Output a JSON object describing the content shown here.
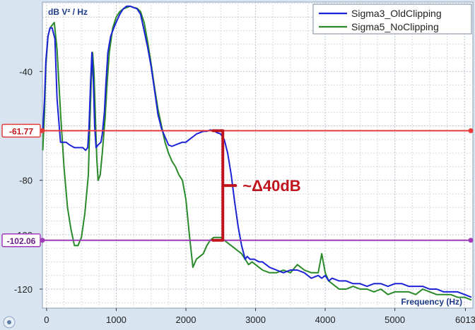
{
  "chart_data": {
    "type": "line",
    "ylabel": "dB V² / Hz",
    "xlabel": "Frequency (Hz)",
    "xlim": [
      -60,
      6120
    ],
    "ylim": [
      -127,
      -14.5
    ],
    "xticks": [
      0,
      1000,
      2000,
      3000,
      4000,
      5000,
      6013
    ],
    "xtick_labels": [
      "0",
      "1000",
      "2000",
      "3000",
      "4000",
      "5000",
      "6013"
    ],
    "yticks": [
      -40,
      -80,
      -120
    ],
    "ytick_labels": [
      "-40",
      "-80",
      "-120"
    ],
    "partial_ytick_label": "-100",
    "grid": true,
    "legend_position": "top-right",
    "series": [
      {
        "name": "Sigma3_OldClipping",
        "color": "#1c22d6",
        "x": [
          -55,
          -30,
          -10,
          20,
          50,
          80,
          120,
          150,
          200,
          240,
          280,
          330,
          400,
          450,
          520,
          560,
          590,
          610,
          630,
          650,
          670,
          690,
          710,
          740,
          780,
          800,
          830,
          850,
          880,
          920,
          980,
          1050,
          1100,
          1150,
          1200,
          1250,
          1300,
          1350,
          1400,
          1450,
          1500,
          1550,
          1600,
          1650,
          1700,
          1750,
          1800,
          1850,
          1900,
          1950,
          2000,
          2050,
          2100,
          2150,
          2200,
          2250,
          2300,
          2350,
          2400,
          2450,
          2500,
          2550,
          2600,
          2650,
          2700,
          2750,
          2800,
          2830,
          2850,
          2880,
          2920,
          2980,
          3050,
          3100,
          3200,
          3300,
          3400,
          3500,
          3600,
          3700,
          3800,
          3900,
          3950,
          4000,
          4050,
          4100,
          4200,
          4300,
          4400,
          4500,
          4600,
          4700,
          4800,
          4900,
          5000,
          5100,
          5200,
          5300,
          5400,
          5500,
          5600,
          5700,
          5800,
          5900,
          6000,
          6100
        ],
        "y": [
          -62,
          -50,
          -36,
          -27,
          -24,
          -24,
          -28,
          -50,
          -66,
          -66,
          -66,
          -67,
          -68,
          -68,
          -68,
          -69,
          -68,
          -60,
          -45,
          -33,
          -42,
          -60,
          -68,
          -67,
          -66,
          -63,
          -55,
          -45,
          -33,
          -27,
          -23,
          -19,
          -17,
          -16,
          -16,
          -16.5,
          -17,
          -19,
          -25,
          -31,
          -38,
          -47,
          -56,
          -61,
          -64,
          -67,
          -67.5,
          -67,
          -66.5,
          -66,
          -66,
          -65,
          -64,
          -63,
          -62.5,
          -62,
          -62,
          -61.5,
          -61.8,
          -62.5,
          -63,
          -65,
          -70,
          -78,
          -88,
          -97,
          -104,
          -107,
          -109,
          -108,
          -109,
          -109,
          -110,
          -110,
          -112,
          -113,
          -114,
          -113,
          -113,
          -114,
          -116,
          -115,
          -116,
          -115,
          -117,
          -116,
          -117,
          -117,
          -118,
          -118,
          -119,
          -118,
          -118,
          -119,
          -118,
          -118,
          -119,
          -119,
          -119,
          -120,
          -120,
          -121,
          -121,
          -121,
          -122,
          -123
        ]
      },
      {
        "name": "Sigma5_NoClipping",
        "color": "#2a8a2a",
        "x": [
          -55,
          -30,
          -10,
          20,
          50,
          80,
          110,
          150,
          200,
          250,
          300,
          350,
          400,
          450,
          500,
          550,
          600,
          620,
          640,
          660,
          680,
          700,
          720,
          740,
          770,
          800,
          840,
          870,
          900,
          950,
          1000,
          1050,
          1100,
          1150,
          1200,
          1250,
          1300,
          1350,
          1400,
          1450,
          1500,
          1550,
          1600,
          1650,
          1700,
          1750,
          1800,
          1850,
          1900,
          1950,
          2000,
          2050,
          2100,
          2150,
          2200,
          2250,
          2300,
          2350,
          2400,
          2450,
          2500,
          2550,
          2600,
          2650,
          2700,
          2750,
          2800,
          2850,
          2900,
          2950,
          3000,
          3100,
          3200,
          3300,
          3400,
          3500,
          3600,
          3700,
          3800,
          3900,
          3950,
          4000,
          4050,
          4100,
          4200,
          4300,
          4400,
          4500,
          4600,
          4700,
          4800,
          4900,
          5000,
          5100,
          5200,
          5300,
          5400,
          5500,
          5600,
          5700,
          5800,
          5900,
          6000,
          6100
        ],
        "y": [
          -69,
          -55,
          -38,
          -27,
          -24,
          -23,
          -22,
          -32,
          -55,
          -75,
          -90,
          -98,
          -104,
          -104,
          -101,
          -92,
          -78,
          -60,
          -44,
          -33,
          -40,
          -56,
          -72,
          -80,
          -78,
          -70,
          -57,
          -44,
          -33,
          -24,
          -20,
          -18,
          -17,
          -16.5,
          -16,
          -16.5,
          -16.8,
          -18,
          -22,
          -29,
          -37,
          -46,
          -54,
          -60,
          -66,
          -70,
          -73,
          -75,
          -78,
          -80,
          -87,
          -100,
          -112,
          -109,
          -108,
          -107,
          -104,
          -102,
          -101,
          -101,
          -101,
          -102,
          -103,
          -104,
          -105,
          -106,
          -107,
          -109,
          -111,
          -110,
          -111,
          -113,
          -114,
          -114,
          -113,
          -114,
          -111,
          -113,
          -114,
          -114,
          -107,
          -114,
          -117,
          -118,
          -120,
          -120,
          -119,
          -120,
          -120,
          -121,
          -120,
          -122,
          -121,
          -121,
          -121,
          -122,
          -120,
          -121,
          -122,
          -122,
          -122,
          -123,
          -123,
          -124
        ]
      }
    ],
    "cursors": [
      {
        "value": -61.77,
        "label": "-61.77",
        "color": "#e53b3b"
      },
      {
        "value": -102.06,
        "label": "-102.06",
        "color": "#a03cb8"
      }
    ],
    "annotation": {
      "text": "~Δ40dB",
      "color": "#c0141c",
      "x": 2530,
      "y_top": -61.77,
      "y_bottom": -102.06
    }
  }
}
